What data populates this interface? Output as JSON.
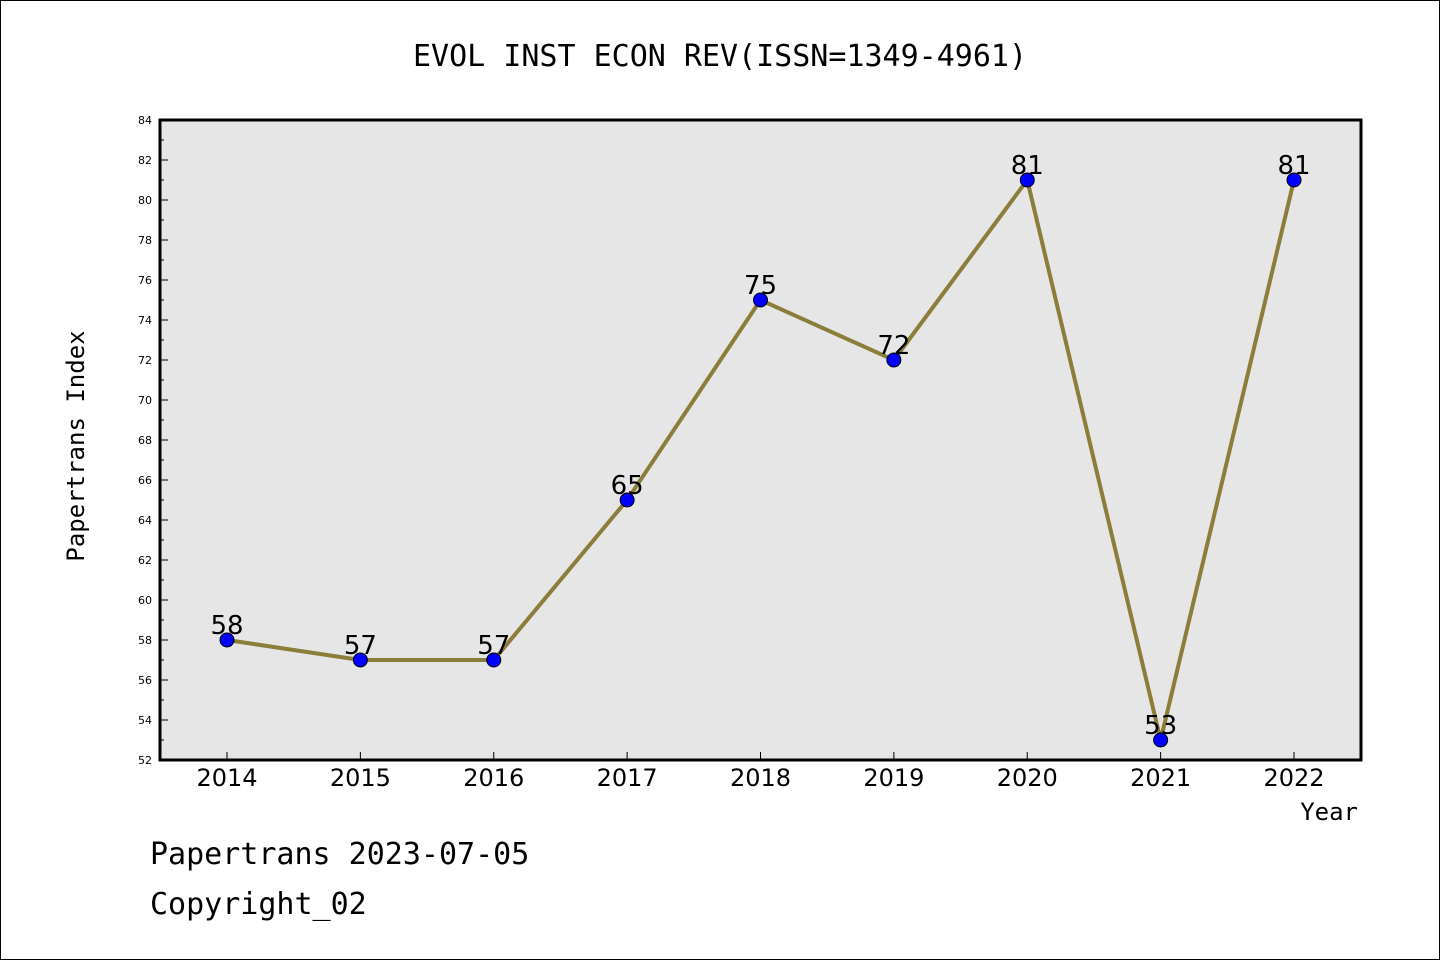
{
  "chart_data": {
    "type": "line",
    "title": "EVOL INST ECON REV(ISSN=1349-4961)",
    "xlabel": "Year",
    "ylabel": "Papertrans Index",
    "x": [
      "2014",
      "2015",
      "2016",
      "2017",
      "2018",
      "2019",
      "2020",
      "2021",
      "2022"
    ],
    "series": [
      {
        "values": [
          58,
          57,
          57,
          65,
          75,
          72,
          81,
          53,
          81
        ]
      }
    ],
    "data_labels": [
      "58",
      "57",
      "57",
      "65",
      "75",
      "72",
      "81",
      "53",
      "81"
    ],
    "ylim": [
      52,
      84
    ],
    "yticks": [
      "52",
      "54",
      "56",
      "58",
      "60",
      "62",
      "64",
      "66",
      "68",
      "70",
      "72",
      "74",
      "76",
      "78",
      "80",
      "82",
      "84"
    ],
    "grid": false,
    "line_color": "#8b7d3a",
    "marker_color": "#0000ff",
    "plot_background": "#e6e6e6"
  },
  "footer": {
    "line1": "Papertrans 2023-07-05",
    "line2": "Copyright_02"
  }
}
